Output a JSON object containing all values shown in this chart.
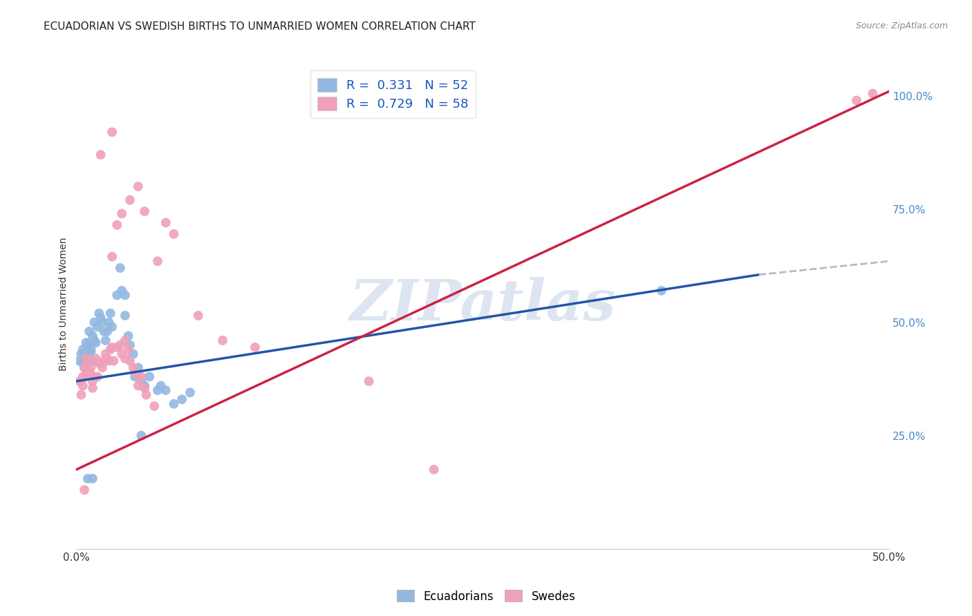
{
  "title": "ECUADORIAN VS SWEDISH BIRTHS TO UNMARRIED WOMEN CORRELATION CHART",
  "source": "Source: ZipAtlas.com",
  "ylabel": "Births to Unmarried Women",
  "xlim": [
    0.0,
    0.5
  ],
  "ylim": [
    0.0,
    1.08
  ],
  "yticks": [
    0.25,
    0.5,
    0.75,
    1.0
  ],
  "ytick_labels": [
    "25.0%",
    "50.0%",
    "75.0%",
    "100.0%"
  ],
  "xticks": [
    0.0,
    0.1,
    0.2,
    0.3,
    0.4,
    0.5
  ],
  "xtick_labels": [
    "0.0%",
    "",
    "",
    "",
    "",
    "50.0%"
  ],
  "ecuadorians": {
    "color": "#92b8e0",
    "line_color": "#2255aa",
    "line_x0": 0.0,
    "line_y0": 0.37,
    "line_x1": 0.5,
    "line_y1": 0.65,
    "line_solid_end": 0.42,
    "points": [
      [
        0.002,
        0.415
      ],
      [
        0.003,
        0.43
      ],
      [
        0.004,
        0.44
      ],
      [
        0.004,
        0.41
      ],
      [
        0.005,
        0.4
      ],
      [
        0.005,
        0.43
      ],
      [
        0.006,
        0.415
      ],
      [
        0.006,
        0.455
      ],
      [
        0.007,
        0.445
      ],
      [
        0.007,
        0.41
      ],
      [
        0.008,
        0.455
      ],
      [
        0.008,
        0.48
      ],
      [
        0.009,
        0.44
      ],
      [
        0.009,
        0.435
      ],
      [
        0.01,
        0.47
      ],
      [
        0.01,
        0.415
      ],
      [
        0.011,
        0.5
      ],
      [
        0.011,
        0.46
      ],
      [
        0.012,
        0.455
      ],
      [
        0.013,
        0.49
      ],
      [
        0.014,
        0.52
      ],
      [
        0.015,
        0.51
      ],
      [
        0.016,
        0.5
      ],
      [
        0.017,
        0.48
      ],
      [
        0.018,
        0.46
      ],
      [
        0.019,
        0.48
      ],
      [
        0.02,
        0.5
      ],
      [
        0.021,
        0.52
      ],
      [
        0.022,
        0.49
      ],
      [
        0.025,
        0.56
      ],
      [
        0.027,
        0.62
      ],
      [
        0.028,
        0.57
      ],
      [
        0.03,
        0.56
      ],
      [
        0.03,
        0.515
      ],
      [
        0.032,
        0.47
      ],
      [
        0.033,
        0.45
      ],
      [
        0.035,
        0.43
      ],
      [
        0.036,
        0.38
      ],
      [
        0.038,
        0.4
      ],
      [
        0.04,
        0.37
      ],
      [
        0.042,
        0.36
      ],
      [
        0.045,
        0.38
      ],
      [
        0.05,
        0.35
      ],
      [
        0.052,
        0.36
      ],
      [
        0.055,
        0.35
      ],
      [
        0.06,
        0.32
      ],
      [
        0.065,
        0.33
      ],
      [
        0.07,
        0.345
      ],
      [
        0.007,
        0.155
      ],
      [
        0.01,
        0.155
      ],
      [
        0.04,
        0.25
      ],
      [
        0.36,
        0.57
      ]
    ]
  },
  "swedes": {
    "color": "#f0a0b8",
    "line_color": "#cc2244",
    "line_x0": 0.0,
    "line_y0": 0.175,
    "line_x1": 0.5,
    "line_y1": 1.01,
    "points": [
      [
        0.002,
        0.37
      ],
      [
        0.003,
        0.34
      ],
      [
        0.004,
        0.36
      ],
      [
        0.004,
        0.38
      ],
      [
        0.005,
        0.4
      ],
      [
        0.006,
        0.42
      ],
      [
        0.006,
        0.38
      ],
      [
        0.007,
        0.41
      ],
      [
        0.008,
        0.39
      ],
      [
        0.009,
        0.4
      ],
      [
        0.01,
        0.37
      ],
      [
        0.01,
        0.355
      ],
      [
        0.011,
        0.38
      ],
      [
        0.012,
        0.42
      ],
      [
        0.013,
        0.38
      ],
      [
        0.014,
        0.41
      ],
      [
        0.015,
        0.41
      ],
      [
        0.016,
        0.4
      ],
      [
        0.017,
        0.415
      ],
      [
        0.018,
        0.43
      ],
      [
        0.019,
        0.42
      ],
      [
        0.02,
        0.415
      ],
      [
        0.021,
        0.44
      ],
      [
        0.022,
        0.445
      ],
      [
        0.023,
        0.415
      ],
      [
        0.025,
        0.445
      ],
      [
        0.027,
        0.45
      ],
      [
        0.028,
        0.43
      ],
      [
        0.03,
        0.46
      ],
      [
        0.03,
        0.42
      ],
      [
        0.032,
        0.44
      ],
      [
        0.033,
        0.415
      ],
      [
        0.035,
        0.4
      ],
      [
        0.037,
        0.385
      ],
      [
        0.038,
        0.36
      ],
      [
        0.04,
        0.38
      ],
      [
        0.042,
        0.355
      ],
      [
        0.043,
        0.34
      ],
      [
        0.048,
        0.315
      ],
      [
        0.022,
        0.645
      ],
      [
        0.025,
        0.715
      ],
      [
        0.028,
        0.74
      ],
      [
        0.033,
        0.77
      ],
      [
        0.038,
        0.8
      ],
      [
        0.042,
        0.745
      ],
      [
        0.05,
        0.635
      ],
      [
        0.055,
        0.72
      ],
      [
        0.06,
        0.695
      ],
      [
        0.015,
        0.87
      ],
      [
        0.022,
        0.92
      ],
      [
        0.075,
        0.515
      ],
      [
        0.09,
        0.46
      ],
      [
        0.11,
        0.445
      ],
      [
        0.18,
        0.37
      ],
      [
        0.22,
        0.175
      ],
      [
        0.005,
        0.13
      ],
      [
        0.48,
        0.99
      ],
      [
        0.49,
        1.005
      ]
    ]
  },
  "background_color": "#ffffff",
  "grid_color": "#d8d8d8",
  "watermark": "ZIPatlas",
  "watermark_color": "#c5d5e8"
}
